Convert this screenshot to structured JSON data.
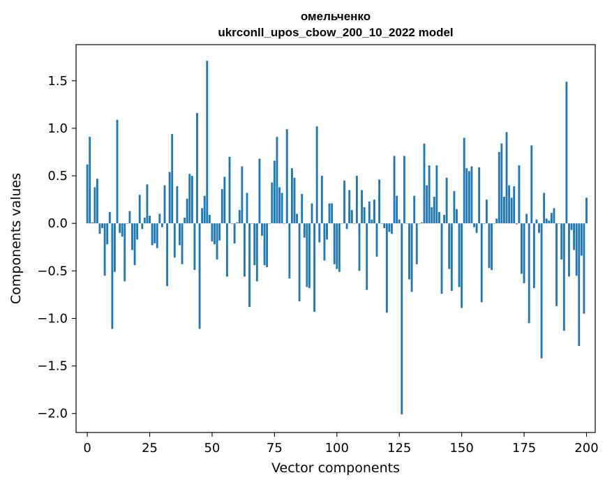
{
  "chart_data": {
    "type": "bar",
    "title_line1": "омельченко",
    "title_line2": "ukrconll_upos_cbow_200_10_2022 model",
    "xlabel": "Vector components",
    "ylabel": "Components values",
    "xlim": [
      -4.5,
      203.5
    ],
    "ylim": [
      -2.2,
      1.88
    ],
    "xticks": [
      0,
      25,
      50,
      75,
      100,
      125,
      150,
      175,
      200
    ],
    "xtick_labels": [
      "0",
      "25",
      "50",
      "75",
      "100",
      "125",
      "150",
      "175",
      "200"
    ],
    "yticks": [
      1.5,
      1.0,
      0.5,
      0.0,
      -0.5,
      -1.0,
      -1.5,
      -2.0
    ],
    "ytick_labels": [
      "1.5",
      "1.0",
      "0.5",
      "0.0",
      "−0.5",
      "−1.0",
      "−1.5",
      "−2.0"
    ],
    "bar_color": "#1f77b4",
    "values": [
      0.62,
      0.91,
      0.01,
      0.38,
      0.47,
      -0.11,
      -0.05,
      -0.55,
      -0.22,
      0.12,
      -1.11,
      -0.51,
      1.09,
      -0.1,
      -0.14,
      -0.61,
      0.0,
      0.13,
      -0.28,
      -0.44,
      -0.17,
      0.3,
      -0.06,
      0.06,
      0.41,
      0.08,
      -0.23,
      -0.21,
      -0.26,
      0.1,
      -0.04,
      0.4,
      -0.66,
      0.54,
      0.94,
      -0.36,
      0.39,
      -0.23,
      -0.43,
      0.06,
      0.26,
      0.52,
      0.5,
      -0.49,
      1.16,
      -1.11,
      0.16,
      0.29,
      1.71,
      0.09,
      -0.19,
      -0.22,
      -0.38,
      -0.18,
      0.36,
      0.49,
      -0.56,
      0.7,
      0.0,
      -0.21,
      0.01,
      0.14,
      0.6,
      -0.56,
      0.32,
      -0.88,
      0.0,
      -0.44,
      -0.61,
      0.68,
      -0.13,
      -0.44,
      -0.46,
      0.0,
      0.43,
      0.66,
      0.91,
      0.38,
      0.32,
      0.0,
      0.99,
      -0.58,
      0.58,
      0.48,
      0.1,
      -0.82,
      0.31,
      -0.15,
      -0.67,
      -0.68,
      0.21,
      -0.93,
      1.02,
      -0.2,
      0.5,
      -0.39,
      -0.17,
      0.21,
      0.21,
      -0.43,
      -0.48,
      -0.51,
      0.0,
      0.45,
      -0.06,
      0.35,
      0.14,
      0.0,
      0.5,
      -0.5,
      0.35,
      0.17,
      -0.7,
      0.23,
      0.04,
      0.25,
      -0.35,
      0.46,
      0.0,
      -0.05,
      -0.94,
      -0.09,
      -0.11,
      0.71,
      0.29,
      0.04,
      -2.01,
      0.71,
      0.0,
      -0.59,
      -0.72,
      0.29,
      -0.43,
      0.0,
      0.01,
      0.84,
      0.4,
      0.61,
      0.17,
      0.28,
      0.61,
      0.12,
      -0.74,
      0.09,
      0.48,
      -0.48,
      -0.71,
      0.34,
      0.15,
      -0.67,
      -0.89,
      0.9,
      0.58,
      0.55,
      0.6,
      -0.04,
      -0.1,
      0.59,
      -0.83,
      0.0,
      0.25,
      -0.47,
      -0.49,
      0.0,
      0.05,
      0.75,
      0.84,
      0.28,
      0.96,
      0.4,
      0.27,
      0.39,
      -0.01,
      0.61,
      -0.53,
      -0.63,
      0.1,
      -1.05,
      0.82,
      -0.68,
      0.04,
      -0.1,
      -1.42,
      0.32,
      0.05,
      0.03,
      0.11,
      0.16,
      -0.87,
      0.0,
      -0.38,
      -1.13,
      1.49,
      -0.56,
      -0.07,
      -0.28,
      -0.55,
      -1.29,
      -0.34,
      -0.95,
      0.27
    ]
  }
}
